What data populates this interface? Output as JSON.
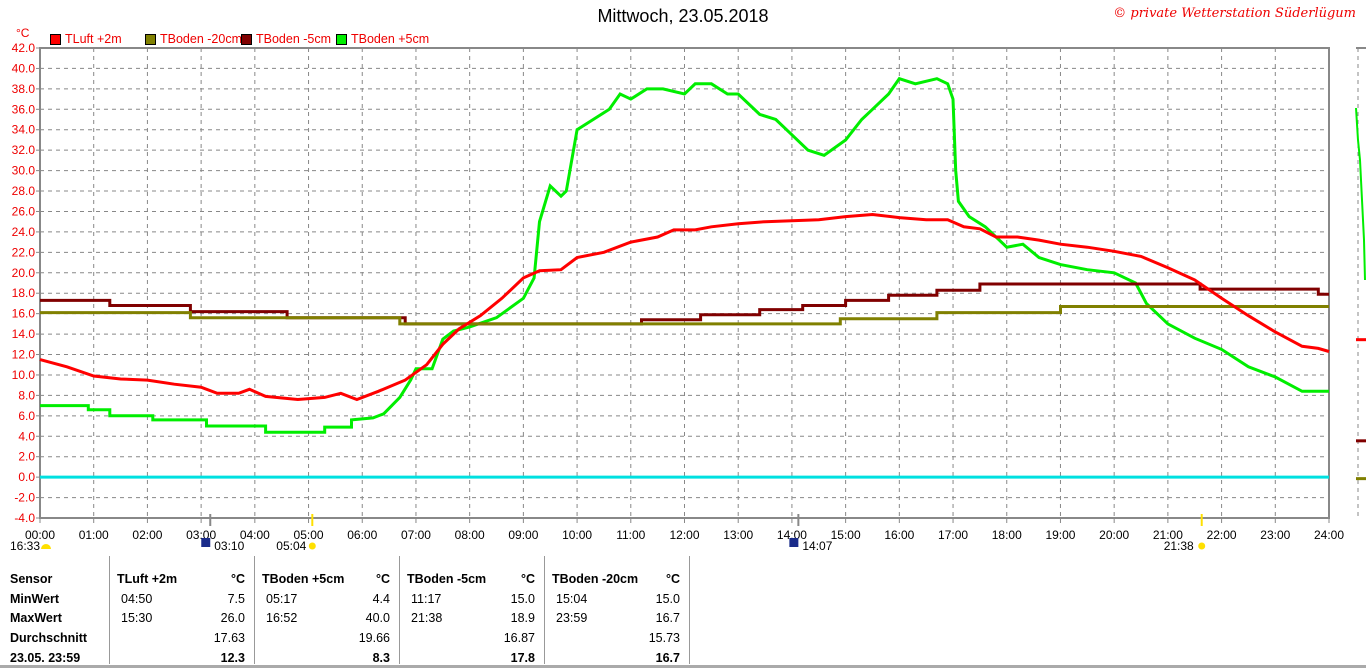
{
  "title": "Mittwoch, 23.05.2018",
  "copyright": "© private Wetterstation Süderlügum",
  "unit": "°C",
  "chart_data": {
    "type": "line",
    "title": "Mittwoch, 23.05.2018",
    "ylabel": "°C",
    "ylim": [
      -4,
      42
    ],
    "xlim": [
      0,
      24
    ],
    "yticks": [
      "42.0",
      "40.0",
      "38.0",
      "36.0",
      "34.0",
      "32.0",
      "30.0",
      "28.0",
      "26.0",
      "24.0",
      "22.0",
      "20.0",
      "18.0",
      "16.0",
      "14.0",
      "12.0",
      "10.0",
      "8.0",
      "6.0",
      "4.0",
      "2.0",
      "0.0",
      "-2.0",
      "-4.0"
    ],
    "xticks": [
      "00:00",
      "01:00",
      "02:00",
      "03:00",
      "04:00",
      "05:00",
      "06:00",
      "07:00",
      "08:00",
      "09:00",
      "10:00",
      "11:00",
      "12:00",
      "13:00",
      "14:00",
      "15:00",
      "16:00",
      "17:00",
      "18:00",
      "19:00",
      "20:00",
      "21:00",
      "22:00",
      "23:00",
      "24:00"
    ],
    "grid": true,
    "legend_position": "top-left",
    "series": [
      {
        "name": "TLuft +2m",
        "color": "#ff0000",
        "step": false,
        "points": [
          [
            0,
            11.5
          ],
          [
            0.5,
            10.8
          ],
          [
            1,
            9.9
          ],
          [
            1.5,
            9.6
          ],
          [
            2,
            9.5
          ],
          [
            2.5,
            9.1
          ],
          [
            3,
            8.8
          ],
          [
            3.3,
            8.2
          ],
          [
            3.7,
            8.2
          ],
          [
            3.9,
            8.6
          ],
          [
            4.2,
            7.9
          ],
          [
            4.8,
            7.6
          ],
          [
            5.3,
            7.8
          ],
          [
            5.6,
            8.2
          ],
          [
            5.9,
            7.6
          ],
          [
            6.3,
            8.4
          ],
          [
            6.8,
            9.5
          ],
          [
            7.2,
            11
          ],
          [
            7.5,
            13
          ],
          [
            7.8,
            14.5
          ],
          [
            8.2,
            15.8
          ],
          [
            8.6,
            17.5
          ],
          [
            9,
            19.5
          ],
          [
            9.3,
            20.2
          ],
          [
            9.7,
            20.3
          ],
          [
            10,
            21.5
          ],
          [
            10.5,
            22
          ],
          [
            11,
            23
          ],
          [
            11.5,
            23.5
          ],
          [
            11.8,
            24.2
          ],
          [
            12.2,
            24.2
          ],
          [
            12.5,
            24.5
          ],
          [
            13,
            24.8
          ],
          [
            13.5,
            25
          ],
          [
            14,
            25.1
          ],
          [
            14.5,
            25.2
          ],
          [
            15,
            25.5
          ],
          [
            15.5,
            25.7
          ],
          [
            16,
            25.4
          ],
          [
            16.5,
            25.2
          ],
          [
            16.9,
            25.2
          ],
          [
            17.2,
            24.5
          ],
          [
            17.5,
            24.3
          ],
          [
            17.8,
            23.5
          ],
          [
            18.2,
            23.5
          ],
          [
            18.6,
            23.2
          ],
          [
            19,
            22.8
          ],
          [
            19.5,
            22.5
          ],
          [
            20,
            22.1
          ],
          [
            20.5,
            21.6
          ],
          [
            21,
            20.5
          ],
          [
            21.5,
            19.3
          ],
          [
            22,
            17.5
          ],
          [
            22.5,
            15.8
          ],
          [
            23,
            14.2
          ],
          [
            23.5,
            12.8
          ],
          [
            23.8,
            12.6
          ],
          [
            24,
            12.3
          ]
        ]
      },
      {
        "name": "TBoden -20cm",
        "color": "#808000",
        "step": true,
        "points": [
          [
            0,
            16.1
          ],
          [
            2.8,
            15.6
          ],
          [
            6.7,
            15.0
          ],
          [
            14.9,
            15.5
          ],
          [
            16.7,
            16.1
          ],
          [
            19,
            16.7
          ],
          [
            24,
            16.7
          ]
        ]
      },
      {
        "name": "TBoden -5cm",
        "color": "#800000",
        "step": true,
        "points": [
          [
            0,
            17.3
          ],
          [
            1.3,
            16.8
          ],
          [
            2.8,
            16.2
          ],
          [
            4.6,
            15.6
          ],
          [
            6.8,
            15.0
          ],
          [
            11.2,
            15.4
          ],
          [
            12.3,
            15.9
          ],
          [
            13.4,
            16.4
          ],
          [
            14.2,
            16.8
          ],
          [
            15.0,
            17.3
          ],
          [
            15.8,
            17.8
          ],
          [
            16.7,
            18.3
          ],
          [
            17.5,
            18.9
          ],
          [
            21.6,
            18.4
          ],
          [
            23.8,
            17.9
          ],
          [
            24,
            17.9
          ]
        ]
      },
      {
        "name": "TBoden +5cm",
        "color": "#00ee00",
        "step": false,
        "points": [
          [
            0,
            7.0
          ],
          [
            0.9,
            7.0
          ],
          [
            0.9,
            6.6
          ],
          [
            1.3,
            6.6
          ],
          [
            1.3,
            6.0
          ],
          [
            2.1,
            6.0
          ],
          [
            2.1,
            5.6
          ],
          [
            3.1,
            5.6
          ],
          [
            3.1,
            5.0
          ],
          [
            4.2,
            5.0
          ],
          [
            4.2,
            4.4
          ],
          [
            5.3,
            4.4
          ],
          [
            5.3,
            4.9
          ],
          [
            5.8,
            4.9
          ],
          [
            5.8,
            5.6
          ],
          [
            6.2,
            5.8
          ],
          [
            6.4,
            6.2
          ],
          [
            6.7,
            7.8
          ],
          [
            6.9,
            9.5
          ],
          [
            7.0,
            10.6
          ],
          [
            7.3,
            10.6
          ],
          [
            7.5,
            13.5
          ],
          [
            7.7,
            14.3
          ],
          [
            8,
            14.7
          ],
          [
            8.5,
            15.6
          ],
          [
            9,
            17.5
          ],
          [
            9.2,
            19.5
          ],
          [
            9.3,
            25
          ],
          [
            9.5,
            28.5
          ],
          [
            9.7,
            27.5
          ],
          [
            9.8,
            28
          ],
          [
            10,
            34
          ],
          [
            10.3,
            35
          ],
          [
            10.6,
            36
          ],
          [
            10.8,
            37.5
          ],
          [
            11,
            37
          ],
          [
            11.3,
            38
          ],
          [
            11.6,
            38
          ],
          [
            12,
            37.5
          ],
          [
            12.2,
            38.5
          ],
          [
            12.5,
            38.5
          ],
          [
            12.8,
            37.5
          ],
          [
            13,
            37.5
          ],
          [
            13.4,
            35.5
          ],
          [
            13.7,
            35
          ],
          [
            14,
            33.5
          ],
          [
            14.3,
            32
          ],
          [
            14.6,
            31.5
          ],
          [
            15,
            33
          ],
          [
            15.3,
            35
          ],
          [
            15.5,
            36
          ],
          [
            15.8,
            37.5
          ],
          [
            16,
            39
          ],
          [
            16.3,
            38.5
          ],
          [
            16.7,
            39
          ],
          [
            16.9,
            38.5
          ],
          [
            17.0,
            37
          ],
          [
            17.05,
            30
          ],
          [
            17.1,
            27
          ],
          [
            17.3,
            25.5
          ],
          [
            17.6,
            24.5
          ],
          [
            18,
            22.5
          ],
          [
            18.3,
            22.8
          ],
          [
            18.6,
            21.5
          ],
          [
            19,
            20.8
          ],
          [
            19.5,
            20.3
          ],
          [
            20,
            20
          ],
          [
            20.4,
            19
          ],
          [
            20.6,
            17
          ],
          [
            21,
            15
          ],
          [
            21.5,
            13.6
          ],
          [
            22,
            12.5
          ],
          [
            22.5,
            10.8
          ],
          [
            23,
            9.8
          ],
          [
            23.5,
            8.4
          ],
          [
            24,
            8.4
          ]
        ]
      },
      {
        "name": "zero line",
        "color": "#00e0e0",
        "step": false,
        "points": [
          [
            0,
            0
          ],
          [
            24,
            0
          ]
        ]
      }
    ],
    "events": [
      {
        "label": "16:33",
        "time": 0,
        "icon": "moonset-icon"
      },
      {
        "label": "03:10",
        "time": 3.17,
        "icon": "moonrise-icon"
      },
      {
        "label": "05:04",
        "time": 5.07,
        "icon": "sunrise-icon"
      },
      {
        "label": "14:07",
        "time": 14.12,
        "icon": "moon-icon"
      },
      {
        "label": "21:38",
        "time": 21.63,
        "icon": "sunset-icon"
      }
    ]
  },
  "table": {
    "row_labels": [
      "Sensor",
      "MinWert",
      "MaxWert",
      "Durchschnitt",
      "23.05. 23:59"
    ],
    "columns": [
      {
        "name": "TLuft +2m",
        "unit": "°C",
        "min_time": "04:50",
        "min": "7.5",
        "max_time": "15:30",
        "max": "26.0",
        "avg": "17.63",
        "current": "12.3"
      },
      {
        "name": "TBoden +5cm",
        "unit": "°C",
        "min_time": "05:17",
        "min": "4.4",
        "max_time": "16:52",
        "max": "40.0",
        "avg": "19.66",
        "current": "8.3"
      },
      {
        "name": "TBoden -5cm",
        "unit": "°C",
        "min_time": "11:17",
        "min": "15.0",
        "max_time": "21:38",
        "max": "18.9",
        "avg": "16.87",
        "current": "17.8"
      },
      {
        "name": "TBoden -20cm",
        "unit": "°C",
        "min_time": "15:04",
        "min": "15.0",
        "max_time": "23:59",
        "max": "16.7",
        "avg": "15.73",
        "current": "16.7"
      }
    ]
  }
}
